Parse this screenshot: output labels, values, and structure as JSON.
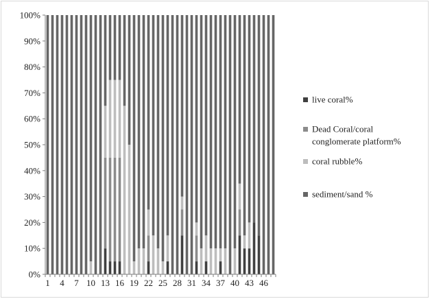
{
  "chart_data": {
    "type": "bar",
    "stacked": "percent",
    "x": [
      1,
      2,
      3,
      4,
      5,
      6,
      7,
      8,
      9,
      10,
      11,
      12,
      13,
      14,
      15,
      16,
      17,
      18,
      19,
      20,
      21,
      22,
      23,
      24,
      25,
      26,
      27,
      28,
      29,
      30,
      31,
      32,
      33,
      34,
      35,
      36,
      37,
      38,
      39,
      40,
      41,
      42,
      43,
      44,
      45,
      46,
      47,
      48
    ],
    "x_tick_labels": [
      "1",
      "4",
      "7",
      "10",
      "13",
      "16",
      "19",
      "22",
      "25",
      "28",
      "31",
      "34",
      "37",
      "40",
      "43",
      "46"
    ],
    "y_tick_labels": [
      "0%",
      "10%",
      "20%",
      "30%",
      "40%",
      "50%",
      "60%",
      "70%",
      "80%",
      "90%",
      "100%"
    ],
    "ylim": [
      0,
      100
    ],
    "grid": false,
    "legend_position": "right",
    "series": [
      {
        "name": "live coral%",
        "color": "#404040",
        "values": [
          0,
          0,
          0,
          0,
          0,
          0,
          0,
          0,
          0,
          0,
          0,
          0,
          10,
          5,
          5,
          5,
          0,
          0,
          0,
          0,
          0,
          5,
          0,
          0,
          0,
          5,
          0,
          0,
          15,
          0,
          0,
          5,
          0,
          5,
          0,
          0,
          5,
          0,
          0,
          0,
          15,
          10,
          10,
          20,
          15,
          0,
          0,
          0
        ]
      },
      {
        "name": "Dead Coral/coral conglomerate platform%",
        "color": "#8c8c8c",
        "values": [
          0,
          0,
          0,
          0,
          0,
          0,
          0,
          0,
          0,
          0,
          0,
          0,
          35,
          40,
          40,
          40,
          0,
          0,
          0,
          0,
          0,
          10,
          0,
          0,
          0,
          0,
          0,
          0,
          10,
          0,
          0,
          10,
          0,
          0,
          0,
          0,
          0,
          0,
          0,
          0,
          10,
          0,
          0,
          0,
          0,
          0,
          0,
          0
        ]
      },
      {
        "name": "coral rubble%",
        "color": "#bdbdbd",
        "values": [
          0,
          0,
          0,
          0,
          0,
          0,
          0,
          0,
          0,
          5,
          0,
          0,
          20,
          30,
          30,
          30,
          65,
          50,
          5,
          10,
          10,
          10,
          15,
          10,
          5,
          10,
          0,
          0,
          5,
          0,
          0,
          5,
          10,
          10,
          10,
          10,
          5,
          10,
          0,
          10,
          10,
          5,
          10,
          0,
          0,
          0,
          0,
          0
        ]
      },
      {
        "name": "sediment/sand %",
        "color": "#666666",
        "values": [
          100,
          100,
          100,
          100,
          100,
          100,
          100,
          100,
          100,
          95,
          100,
          100,
          35,
          25,
          25,
          25,
          35,
          50,
          95,
          90,
          90,
          75,
          85,
          90,
          95,
          85,
          100,
          100,
          70,
          100,
          100,
          80,
          90,
          85,
          90,
          90,
          90,
          90,
          100,
          90,
          65,
          85,
          80,
          80,
          85,
          100,
          100,
          100
        ]
      }
    ]
  }
}
